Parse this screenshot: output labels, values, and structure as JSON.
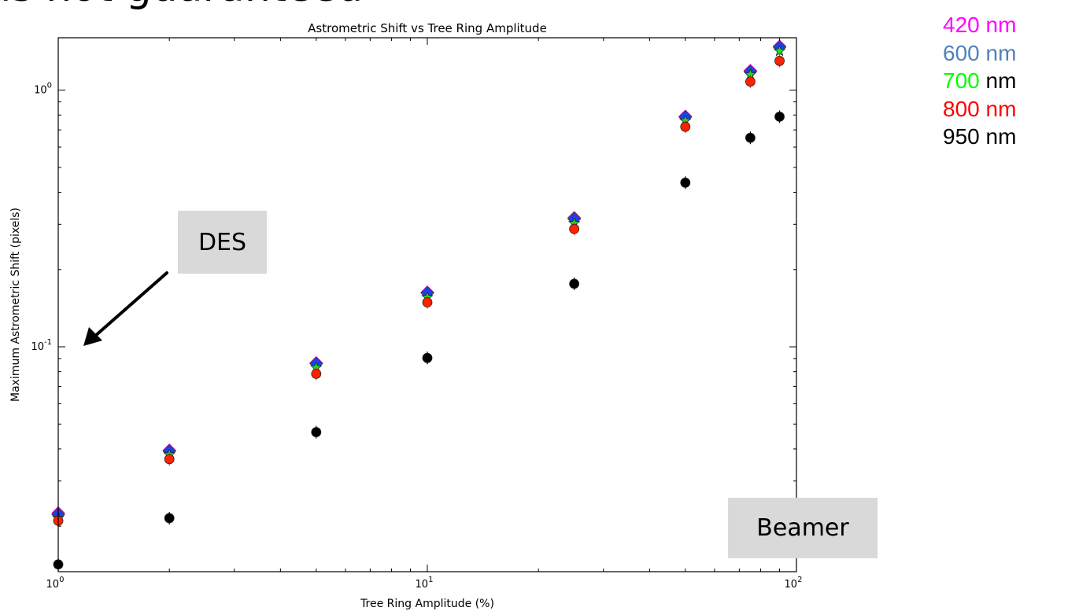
{
  "slide": {
    "title_fragment": "is not guaranteed",
    "des_label": "DES",
    "beamer_label": "Beamer"
  },
  "legend": [
    {
      "label": "420 nm",
      "color": "#ff00ff"
    },
    {
      "label": "600 nm",
      "color": "#4f81bd"
    },
    {
      "label": "700 nm",
      "color": "#00ff00"
    },
    {
      "label": "800 nm",
      "color": "#ff0000"
    },
    {
      "label": "950 nm",
      "color": "#000000"
    }
  ],
  "chart_data": {
    "type": "scatter",
    "title": "Astrometric Shift vs Tree Ring Amplitude",
    "xlabel": "Tree Ring Amplitude (%)",
    "ylabel": "Maximum Astrometric Shift (pixels)",
    "xscale": "log",
    "yscale": "log",
    "xlim": [
      1,
      100
    ],
    "ylim": [
      0.0133,
      1.6
    ],
    "x_ticks": [
      {
        "value": 1,
        "base": "10",
        "exp": "0"
      },
      {
        "value": 10,
        "base": "10",
        "exp": "1"
      },
      {
        "value": 100,
        "base": "10",
        "exp": "2"
      }
    ],
    "y_ticks": [
      {
        "value": 0.1,
        "base": "10",
        "exp": "-1"
      },
      {
        "value": 1,
        "base": "10",
        "exp": "0"
      }
    ],
    "x": [
      1,
      2,
      5,
      10,
      25,
      50,
      75,
      90
    ],
    "series": [
      {
        "name": "420 nm",
        "marker": "diamond",
        "color": "#cc00cc",
        "values": [
          0.0225,
          0.0395,
          0.0865,
          0.163,
          0.318,
          0.79,
          1.19,
          1.48
        ]
      },
      {
        "name": "600 nm",
        "marker": "diamond",
        "color": "#1a3cff",
        "values": [
          0.0222,
          0.0392,
          0.086,
          0.162,
          0.315,
          0.785,
          1.18,
          1.47
        ]
      },
      {
        "name": "700 nm",
        "marker": "star",
        "color": "#22dd22",
        "values": [
          0.0215,
          0.038,
          0.083,
          0.156,
          0.303,
          0.76,
          1.15,
          1.42
        ]
      },
      {
        "name": "800 nm",
        "marker": "circle",
        "color": "#ff2200",
        "values": [
          0.021,
          0.0365,
          0.0785,
          0.149,
          0.288,
          0.72,
          1.08,
          1.3
        ]
      },
      {
        "name": "950 nm",
        "marker": "circle",
        "color": "#000000",
        "values": [
          0.0142,
          0.0215,
          0.0465,
          0.0905,
          0.176,
          0.436,
          0.652,
          0.788
        ]
      }
    ]
  }
}
